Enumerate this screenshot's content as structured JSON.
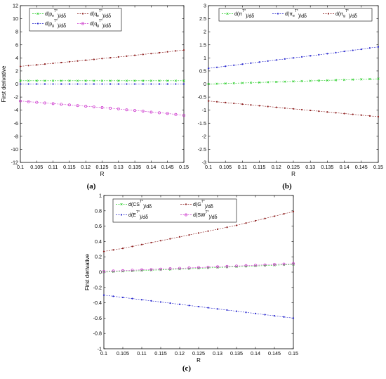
{
  "chart_data": [
    {
      "type": "line",
      "panel_label": "(a)",
      "xlabel": "R",
      "ylabel": "First derivative",
      "xlim": [
        0.1,
        0.15
      ],
      "ylim": [
        -12,
        12
      ],
      "x_ticks": [
        "0.1",
        "0.105",
        "0.11",
        "0.115",
        "0.12",
        "0.125",
        "0.13",
        "0.135",
        "0.14",
        "0.145",
        "0.15"
      ],
      "y_ticks": [
        "-12",
        "-10",
        "-8",
        "-6",
        "-4",
        "-2",
        "0",
        "2",
        "4",
        "6",
        "8",
        "10",
        "12"
      ],
      "legend_loc": "top-left",
      "legend": [
        {
          "base": "d(p",
          "sub": "e",
          "sup": "T*",
          "tail": ")/dδ"
        },
        {
          "base": "d(q",
          "sub": "e",
          "sup": "T*",
          "tail": ")/dδ"
        },
        {
          "base": "d(p",
          "sub": "g",
          "sup": "T*",
          "tail": ")/dδ"
        },
        {
          "base": "d(q",
          "sub": "g",
          "sup": "T*",
          "tail": ")/dδ"
        }
      ],
      "x": [
        0.1,
        0.1025,
        0.105,
        0.1075,
        0.11,
        0.1125,
        0.115,
        0.1175,
        0.12,
        0.1225,
        0.125,
        0.1275,
        0.13,
        0.1325,
        0.135,
        0.1375,
        0.14,
        0.1425,
        0.145,
        0.1475,
        0.15
      ],
      "series": [
        {
          "name": "d(p_e^T*)/dδ",
          "color": "#22cc22",
          "marker": "x",
          "values": [
            0.5,
            0.5,
            0.5,
            0.5,
            0.5,
            0.5,
            0.5,
            0.5,
            0.5,
            0.5,
            0.5,
            0.5,
            0.5,
            0.5,
            0.5,
            0.5,
            0.5,
            0.5,
            0.5,
            0.5,
            0.5
          ]
        },
        {
          "name": "d(q_e^T*)/dδ",
          "color": "#8b1a1a",
          "marker": "dot",
          "values": [
            2.7,
            2.82,
            2.93,
            3.05,
            3.17,
            3.29,
            3.41,
            3.53,
            3.65,
            3.77,
            3.9,
            4.02,
            4.14,
            4.27,
            4.4,
            4.53,
            4.66,
            4.79,
            4.93,
            5.07,
            5.2
          ]
        },
        {
          "name": "d(p_g^T*)/dδ",
          "color": "#2222cc",
          "marker": "dot",
          "values": [
            0,
            0,
            0,
            0,
            0,
            0,
            0,
            0,
            0,
            0,
            0,
            0,
            0,
            0,
            0,
            0,
            0,
            0,
            0,
            0,
            0
          ]
        },
        {
          "name": "d(q_g^T*)/dδ",
          "color": "#cc33cc",
          "marker": "o",
          "values": [
            -2.6,
            -2.7,
            -2.8,
            -2.9,
            -3.0,
            -3.1,
            -3.2,
            -3.3,
            -3.4,
            -3.5,
            -3.6,
            -3.7,
            -3.8,
            -3.95,
            -4.05,
            -4.15,
            -4.3,
            -4.4,
            -4.5,
            -4.65,
            -4.8
          ]
        }
      ]
    },
    {
      "type": "line",
      "panel_label": "(b)",
      "xlabel": "R",
      "ylabel": "",
      "xlim": [
        0.1,
        0.15
      ],
      "ylim": [
        -3,
        3
      ],
      "x_ticks": [
        "0.1",
        "0.105",
        "0.11",
        "0.115",
        "0.12",
        "0.125",
        "0.13",
        "0.135",
        "0.14",
        "0.145",
        "0.15"
      ],
      "y_ticks": [
        "-3",
        "-2.5",
        "-2",
        "-1.5",
        "-1",
        "-0.5",
        "0",
        "0.5",
        "1",
        "1.5",
        "2",
        "2.5",
        "3"
      ],
      "legend_loc": "top",
      "legend": [
        {
          "base": "d(π",
          "sub": "",
          "sup": "T*",
          "tail": ")/dδ"
        },
        {
          "base": "d(π",
          "sub": "e",
          "sup": "T*",
          "tail": ")/dδ"
        },
        {
          "base": "d(π",
          "sub": "g",
          "sup": "T*",
          "tail": ")/dδ"
        }
      ],
      "x": [
        0.1,
        0.1025,
        0.105,
        0.1075,
        0.11,
        0.1125,
        0.115,
        0.1175,
        0.12,
        0.1225,
        0.125,
        0.1275,
        0.13,
        0.1325,
        0.135,
        0.1375,
        0.14,
        0.1425,
        0.145,
        0.1475,
        0.15
      ],
      "series": [
        {
          "name": "d(π^T*)/dδ",
          "color": "#22cc22",
          "marker": "x",
          "values": [
            0.0,
            0.01,
            0.02,
            0.03,
            0.04,
            0.05,
            0.06,
            0.07,
            0.08,
            0.09,
            0.1,
            0.11,
            0.12,
            0.13,
            0.14,
            0.15,
            0.16,
            0.17,
            0.18,
            0.19,
            0.2
          ]
        },
        {
          "name": "d(π_e^T*)/dδ",
          "color": "#2222cc",
          "marker": "dot",
          "values": [
            0.6,
            0.64,
            0.68,
            0.72,
            0.76,
            0.8,
            0.84,
            0.88,
            0.92,
            0.96,
            1.0,
            1.04,
            1.08,
            1.12,
            1.16,
            1.2,
            1.25,
            1.29,
            1.33,
            1.38,
            1.42
          ]
        },
        {
          "name": "d(π_g^T*)/dδ",
          "color": "#8b1a1a",
          "marker": "dot",
          "values": [
            -0.65,
            -0.68,
            -0.71,
            -0.74,
            -0.77,
            -0.8,
            -0.83,
            -0.86,
            -0.89,
            -0.92,
            -0.95,
            -0.98,
            -1.01,
            -1.04,
            -1.07,
            -1.1,
            -1.13,
            -1.16,
            -1.19,
            -1.22,
            -1.25
          ]
        }
      ]
    },
    {
      "type": "line",
      "panel_label": "(c)",
      "xlabel": "R",
      "ylabel": "First derivative",
      "xlim": [
        0.1,
        0.15
      ],
      "ylim": [
        -1,
        1
      ],
      "x_ticks": [
        "0.1",
        "0.105",
        "0.11",
        "0.115",
        "0.12",
        "0.125",
        "0.13",
        "0.135",
        "0.14",
        "0.145",
        "0.15"
      ],
      "y_ticks": [
        "-1",
        "-0.8",
        "-0.6",
        "-0.4",
        "-0.2",
        "0",
        "0.2",
        "0.4",
        "0.6",
        "0.8",
        "1"
      ],
      "legend_loc": "top-left",
      "legend": [
        {
          "base": "d(CS",
          "sub": "",
          "sup": "T*",
          "tail": ")/dδ"
        },
        {
          "base": "d(G",
          "sub": "",
          "sup": "T*",
          "tail": ")/dδ"
        },
        {
          "base": "d(E",
          "sub": "",
          "sup": "T*",
          "tail": ")/dδ"
        },
        {
          "base": "d(SW",
          "sub": "",
          "sup": "T*",
          "tail": ")/dδ"
        }
      ],
      "x": [
        0.1,
        0.1025,
        0.105,
        0.1075,
        0.11,
        0.1125,
        0.115,
        0.1175,
        0.12,
        0.1225,
        0.125,
        0.1275,
        0.13,
        0.1325,
        0.135,
        0.1375,
        0.14,
        0.1425,
        0.145,
        0.1475,
        0.15
      ],
      "series": [
        {
          "name": "d(CS^T*)/dδ",
          "color": "#22cc22",
          "marker": "x",
          "values": [
            0.0,
            0.005,
            0.01,
            0.015,
            0.02,
            0.025,
            0.03,
            0.035,
            0.04,
            0.045,
            0.05,
            0.055,
            0.06,
            0.065,
            0.07,
            0.075,
            0.08,
            0.085,
            0.09,
            0.095,
            0.1
          ]
        },
        {
          "name": "d(G^T*)/dδ",
          "color": "#8b1a1a",
          "marker": "dot",
          "values": [
            0.27,
            0.29,
            0.31,
            0.335,
            0.36,
            0.385,
            0.41,
            0.435,
            0.46,
            0.485,
            0.51,
            0.535,
            0.56,
            0.585,
            0.61,
            0.64,
            0.67,
            0.7,
            0.73,
            0.76,
            0.79
          ]
        },
        {
          "name": "d(E^T*)/dδ",
          "color": "#2222cc",
          "marker": "dot",
          "values": [
            -0.3,
            -0.315,
            -0.33,
            -0.345,
            -0.36,
            -0.375,
            -0.39,
            -0.405,
            -0.42,
            -0.435,
            -0.45,
            -0.465,
            -0.48,
            -0.495,
            -0.51,
            -0.525,
            -0.54,
            -0.555,
            -0.57,
            -0.585,
            -0.6
          ]
        },
        {
          "name": "d(SW^T*)/dδ",
          "color": "#cc33cc",
          "marker": "o",
          "values": [
            0.01,
            0.015,
            0.02,
            0.025,
            0.03,
            0.035,
            0.04,
            0.045,
            0.05,
            0.055,
            0.06,
            0.065,
            0.07,
            0.075,
            0.08,
            0.085,
            0.09,
            0.095,
            0.1,
            0.105,
            0.11
          ]
        }
      ]
    }
  ]
}
